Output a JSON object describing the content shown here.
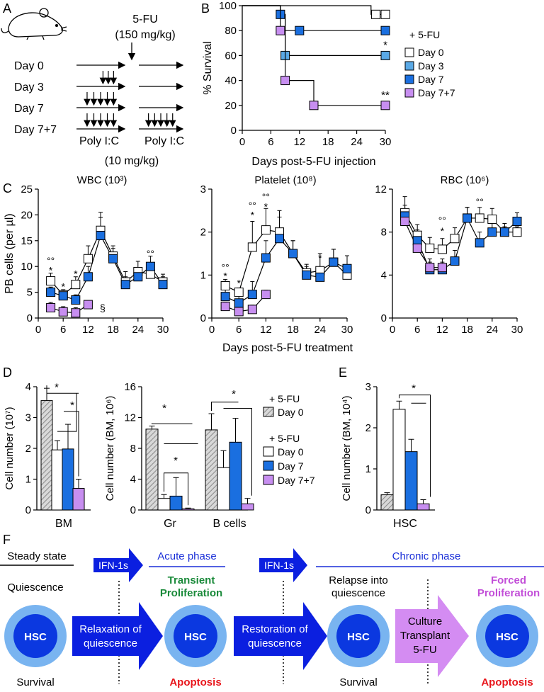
{
  "panel_labels": {
    "a": "A",
    "b": "B",
    "c": "C",
    "d": "D",
    "e": "E",
    "f": "F"
  },
  "panel_a": {
    "drug": "5-FU",
    "drug_dose": "(150 mg/kg)",
    "rows": [
      "Day 0",
      "Day 3",
      "Day 7",
      "Day 7+7"
    ],
    "polyic_left": "Poly I:C",
    "polyic_right": "Poly I:C",
    "polyic_dose": "(10 mg/kg)"
  },
  "chart_data": [
    {
      "id": "survival",
      "type": "line",
      "title": "",
      "xlabel": "Days post-5-FU injection",
      "ylabel": "% Survival",
      "xlim": [
        0,
        30
      ],
      "ylim": [
        0,
        100
      ],
      "xticks": [
        "0",
        "6",
        "12",
        "18",
        "24",
        "30"
      ],
      "yticks": [
        "0",
        "20",
        "40",
        "60",
        "80",
        "100"
      ],
      "legend_title": "+ 5-FU",
      "series": [
        {
          "name": "Day 0",
          "color": "#ffffff",
          "points": [
            [
              0,
              100
            ],
            [
              27,
              100
            ],
            [
              27,
              93
            ],
            [
              30,
              93
            ]
          ],
          "markers": [
            [
              28,
              93
            ],
            [
              30,
              93
            ]
          ],
          "sig": ""
        },
        {
          "name": "Day 3",
          "color": "#5aa9e6",
          "points": [
            [
              0,
              100
            ],
            [
              8,
              100
            ],
            [
              8,
              93
            ],
            [
              9,
              93
            ],
            [
              9,
              60
            ],
            [
              30,
              60
            ]
          ],
          "markers": [
            [
              9,
              60
            ],
            [
              30,
              60
            ]
          ],
          "sig": "*"
        },
        {
          "name": "Day 7",
          "color": "#1a6fe0",
          "points": [
            [
              0,
              100
            ],
            [
              8,
              100
            ],
            [
              8,
              93
            ],
            [
              9,
              93
            ],
            [
              9,
              80
            ],
            [
              30,
              80
            ]
          ],
          "markers": [
            [
              8,
              93
            ],
            [
              12,
              80
            ],
            [
              30,
              80
            ]
          ],
          "sig": ""
        },
        {
          "name": "Day 7+7",
          "color": "#c78ef0",
          "points": [
            [
              0,
              100
            ],
            [
              8,
              100
            ],
            [
              8,
              80
            ],
            [
              9,
              80
            ],
            [
              9,
              40
            ],
            [
              15,
              40
            ],
            [
              15,
              20
            ],
            [
              30,
              20
            ]
          ],
          "markers": [
            [
              8,
              80
            ],
            [
              9,
              40
            ],
            [
              15,
              20
            ],
            [
              30,
              20
            ]
          ],
          "sig": "**"
        }
      ]
    },
    {
      "id": "wbc",
      "type": "line",
      "title": "WBC (10³)",
      "xlabel": "",
      "ylabel": "PB cells (per µl)",
      "xlim": [
        0,
        30
      ],
      "ylim": [
        0,
        25
      ],
      "xticks": [
        "0",
        "6",
        "12",
        "18",
        "24",
        "30"
      ],
      "yticks": [
        "0",
        "5",
        "10",
        "15",
        "20",
        "25"
      ],
      "series": [
        {
          "name": "Day 0",
          "color": "#ffffff",
          "x": [
            3,
            6,
            9,
            12,
            15,
            18,
            21,
            24,
            27,
            30
          ],
          "y": [
            7.2,
            4.5,
            6.5,
            11.5,
            17,
            12,
            7,
            9,
            8.5,
            7
          ],
          "err": [
            1.5,
            1,
            1.5,
            2.5,
            3.5,
            2,
            2,
            2,
            2,
            1.5
          ]
        },
        {
          "name": "Day 7",
          "color": "#1a6fe0",
          "x": [
            3,
            6,
            9,
            12,
            15,
            18,
            21,
            24,
            27,
            30
          ],
          "y": [
            5,
            4.3,
            3.5,
            8,
            16,
            11.5,
            6.5,
            8,
            10,
            6.5
          ],
          "err": [
            1,
            1,
            1,
            2,
            3.5,
            2,
            1.5,
            1.5,
            2,
            1.5
          ]
        },
        {
          "name": "Day 7+7",
          "color": "#c78ef0",
          "x": [
            3,
            6,
            9,
            12
          ],
          "y": [
            2,
            1.2,
            1,
            2.6
          ],
          "err": [
            1,
            1,
            1,
            0.5
          ]
        }
      ],
      "annotations": [
        {
          "x": 3,
          "y": 9.3,
          "text": "*"
        },
        {
          "x": 3,
          "y": 11.1,
          "text": "°°"
        },
        {
          "x": 6,
          "y": 6.1,
          "text": "*"
        },
        {
          "x": 9,
          "y": 8.6,
          "text": "*"
        },
        {
          "x": 27,
          "y": 12.5,
          "text": "°°"
        },
        {
          "x": 15.5,
          "y": 2,
          "text": "§"
        }
      ]
    },
    {
      "id": "platelet",
      "type": "line",
      "title": "Platelet (10⁸)",
      "xlabel": "",
      "ylabel": "",
      "xlim": [
        0,
        30
      ],
      "ylim": [
        0,
        3
      ],
      "xticks": [
        "0",
        "6",
        "12",
        "18",
        "24",
        "30"
      ],
      "yticks": [
        "0",
        "1",
        "2",
        "3"
      ],
      "series": [
        {
          "name": "Day 0",
          "color": "#ffffff",
          "x": [
            3,
            6,
            9,
            12,
            15,
            18,
            21,
            24,
            27,
            30
          ],
          "y": [
            0.75,
            0.6,
            1.65,
            2.05,
            2,
            1.5,
            1.05,
            1.1,
            1.3,
            1.0
          ],
          "err": [
            0.15,
            0.1,
            0.6,
            0.5,
            0.5,
            0.3,
            0.2,
            0.4,
            0.3,
            0.2
          ]
        },
        {
          "name": "Day 7",
          "color": "#1a6fe0",
          "x": [
            3,
            6,
            9,
            12,
            15,
            18,
            21,
            24,
            27,
            30
          ],
          "y": [
            0.5,
            0.35,
            0.55,
            1.4,
            1.85,
            1.5,
            1.0,
            0.95,
            1.3,
            1.15
          ],
          "err": [
            0.2,
            0.2,
            0.3,
            0.4,
            0.5,
            0.3,
            0.2,
            0.2,
            0.3,
            0.3
          ]
        },
        {
          "name": "Day 7+7",
          "color": "#c78ef0",
          "x": [
            3,
            6,
            9,
            12
          ],
          "y": [
            0.27,
            0.15,
            0.2,
            0.55
          ],
          "err": [
            0.1,
            0.1,
            0.1,
            0.1
          ]
        }
      ],
      "annotations": [
        {
          "x": 3,
          "y": 0.98,
          "text": "*"
        },
        {
          "x": 3,
          "y": 1.18,
          "text": "°°"
        },
        {
          "x": 6,
          "y": 0.82,
          "text": "*"
        },
        {
          "x": 9,
          "y": 2.4,
          "text": "*"
        },
        {
          "x": 9,
          "y": 2.62,
          "text": "°°"
        },
        {
          "x": 12,
          "y": 2.6,
          "text": "*"
        },
        {
          "x": 12,
          "y": 2.82,
          "text": "°°"
        },
        {
          "x": 24,
          "y": 1.4,
          "text": "*"
        }
      ]
    },
    {
      "id": "rbc",
      "type": "line",
      "title": "RBC (10⁶)",
      "xlabel": "",
      "ylabel": "",
      "xlim": [
        0,
        30
      ],
      "ylim": [
        0,
        12
      ],
      "xticks": [
        "0",
        "6",
        "12",
        "18",
        "24",
        "30"
      ],
      "yticks": [
        "0",
        "4",
        "8",
        "12"
      ],
      "series": [
        {
          "name": "Day 0",
          "color": "#ffffff",
          "x": [
            3,
            6,
            9,
            12,
            15,
            18,
            21,
            24,
            27,
            30
          ],
          "y": [
            9.8,
            7.7,
            6.5,
            6.4,
            7.4,
            9.3,
            9.3,
            9.2,
            8,
            8
          ],
          "err": [
            1.5,
            1,
            1,
            1,
            1,
            1,
            1,
            1,
            0.5,
            0.5
          ]
        },
        {
          "name": "Day 7",
          "color": "#1a6fe0",
          "x": [
            3,
            6,
            9,
            12,
            15,
            18,
            21,
            24,
            27,
            30
          ],
          "y": [
            9.5,
            7.2,
            4.5,
            4.5,
            5.3,
            9.3,
            7,
            8,
            8,
            9
          ],
          "err": [
            1,
            1,
            1,
            1,
            1,
            1,
            1,
            1,
            0.8,
            0.8
          ]
        },
        {
          "name": "Day 7+7",
          "color": "#c78ef0",
          "x": [
            3,
            6,
            9,
            12
          ],
          "y": [
            9,
            6.5,
            4.7,
            4.7
          ],
          "err": [
            0.6,
            0.6,
            0.5,
            0.5
          ]
        }
      ],
      "annotations": [
        {
          "x": 12,
          "y": 8.1,
          "text": "*"
        },
        {
          "x": 12,
          "y": 9.1,
          "text": "°°"
        },
        {
          "x": 21,
          "y": 10.8,
          "text": "°°"
        }
      ],
      "shared_xlabel": "Days post-5-FU treatment"
    },
    {
      "id": "bm",
      "type": "bar",
      "xlabel": "BM",
      "ylabel": "Cell number (10⁷)",
      "ylim": [
        0,
        4
      ],
      "yticks": [
        "0",
        "1",
        "2",
        "3",
        "4"
      ],
      "categories": [
        "BM"
      ],
      "bars": [
        {
          "name": "Day 0 (no 5-FU)",
          "color": "hatched",
          "value": 3.55,
          "err": 0.4
        },
        {
          "name": "Day 0",
          "color": "#ffffff",
          "value": 1.95,
          "err": 0.3
        },
        {
          "name": "Day 7",
          "color": "#1a6fe0",
          "value": 1.98,
          "err": 0.8
        },
        {
          "name": "Day 7+7",
          "color": "#c78ef0",
          "value": 0.7,
          "err": 0.3
        }
      ],
      "sig": [
        "*",
        "*"
      ]
    },
    {
      "id": "grb",
      "type": "bar",
      "xlabel": "",
      "ylabel": "Cell number (BM, 10⁶)",
      "ylim": [
        0,
        16
      ],
      "yticks": [
        "0",
        "4",
        "8",
        "12",
        "16"
      ],
      "categories": [
        "Gr",
        "B cells"
      ],
      "groups": [
        {
          "label": "Gr",
          "values": [
            10.5,
            1.5,
            1.8,
            0.15
          ],
          "err": [
            0.4,
            0.5,
            2.4,
            0.1
          ]
        },
        {
          "label": "B cells",
          "values": [
            10.4,
            5.5,
            8.8,
            0.8
          ],
          "err": [
            2.1,
            2.2,
            3.1,
            0.7
          ]
        }
      ],
      "sig": [
        "*",
        "*",
        "*"
      ],
      "legend": {
        "title1": "+ 5-FU",
        "item1": "Day 0",
        "title2": "+ 5-FU",
        "items": [
          "Day 0",
          "Day 7",
          "Day 7+7"
        ]
      }
    },
    {
      "id": "hsc",
      "type": "bar",
      "xlabel": "HSC",
      "ylabel": "Cell number (BM, 10⁴)",
      "ylim": [
        0,
        3
      ],
      "yticks": [
        "0",
        "1",
        "2",
        "3"
      ],
      "categories": [
        "HSC"
      ],
      "bars": [
        {
          "name": "Day 0 (no 5-FU)",
          "color": "hatched",
          "value": 0.37,
          "err": 0.05
        },
        {
          "name": "Day 0",
          "color": "#ffffff",
          "value": 2.45,
          "err": 0.2
        },
        {
          "name": "Day 7",
          "color": "#1a6fe0",
          "value": 1.42,
          "err": 0.3
        },
        {
          "name": "Day 7+7",
          "color": "#c78ef0",
          "value": 0.15,
          "err": 0.1
        }
      ],
      "sig": [
        "*"
      ]
    }
  ],
  "panel_f": {
    "steady_state": "Steady state",
    "quiescence": "Quiescence",
    "survival_left": "Survival",
    "ifn1": "IFN-1s",
    "ifn2": "IFN-1s",
    "acute": "Acute phase",
    "transient1": "Transient",
    "transient2": "Proliferation",
    "relax1": "Relaxation of",
    "relax2": "quiescence",
    "apoptosis1": "Apoptosis",
    "chronic": "Chronic phase",
    "restore1": "Restoration of",
    "restore2": "quiescence",
    "relapse1": "Relapse into",
    "relapse2": "quiescence",
    "survival_right": "Survival",
    "culture1": "Culture",
    "culture2": "Transplant",
    "culture3": "5-FU",
    "forced1": "Forced",
    "forced2": "Proliferation",
    "apoptosis2": "Apoptosis",
    "hsc": "HSC"
  }
}
